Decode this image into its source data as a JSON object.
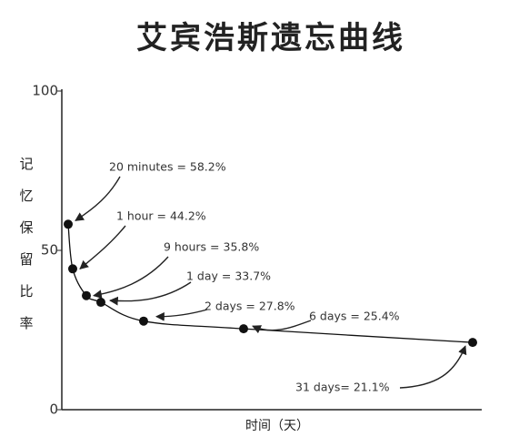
{
  "chart_data": {
    "type": "line",
    "title": "艾宾浩斯遗忘曲线",
    "y_label": "记忆保留比率",
    "x_label": "时间（天）",
    "values": [
      58.2,
      44.2,
      35.8,
      33.7,
      27.8,
      25.4,
      21.1
    ],
    "value_labels": [
      "20 minutes = 58.2%",
      "1 hour = 44.2%",
      "9 hours = 35.8%",
      "1 day = 33.7%",
      "2 days = 27.8%",
      "6 days = 25.4%",
      "31 days= 21.1%"
    ],
    "color": "#111",
    "ylim": [
      0,
      100
    ],
    "yticks": [
      0,
      50,
      100
    ]
  }
}
